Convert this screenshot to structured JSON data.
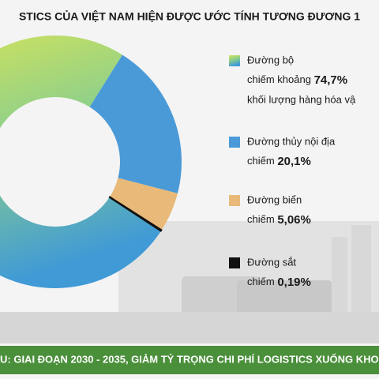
{
  "chart_data": {
    "type": "pie",
    "title": "STICS CỦA VIỆT NAM HIỆN ĐƯỢC ƯỚC TÍNH TƯƠNG ĐƯƠNG 1",
    "categories": [
      "Đường bộ",
      "Đường thủy nội địa",
      "Đường biển",
      "Đường sắt"
    ],
    "values": [
      74.7,
      20.1,
      5.06,
      0.19
    ],
    "value_labels": [
      "74,7%",
      "20,1%",
      "5,06%",
      "0,19%"
    ],
    "prefixes": [
      "chiếm khoảng",
      "chiếm",
      "chiếm",
      "chiếm"
    ],
    "notes": [
      "khối lượng hàng hóa vậ"
    ],
    "colors": [
      "#b9d65a",
      "#4a9ad8",
      "#e8b978",
      "#111111"
    ],
    "footer": "U: GIAI ĐOẠN 2030 - 2035, GIẢM TỶ TRỌNG CHI PHÍ LOGISTICS XUỐNG KHO"
  }
}
